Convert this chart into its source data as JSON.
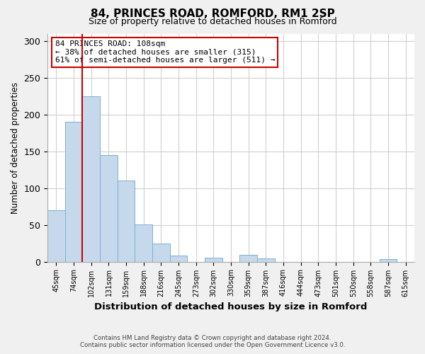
{
  "title": "84, PRINCES ROAD, ROMFORD, RM1 2SP",
  "subtitle": "Size of property relative to detached houses in Romford",
  "xlabel": "Distribution of detached houses by size in Romford",
  "ylabel": "Number of detached properties",
  "bin_labels": [
    "45sqm",
    "74sqm",
    "102sqm",
    "131sqm",
    "159sqm",
    "188sqm",
    "216sqm",
    "245sqm",
    "273sqm",
    "302sqm",
    "330sqm",
    "359sqm",
    "387sqm",
    "416sqm",
    "444sqm",
    "473sqm",
    "501sqm",
    "530sqm",
    "558sqm",
    "587sqm",
    "615sqm"
  ],
  "bin_values": [
    70,
    190,
    225,
    145,
    110,
    51,
    25,
    8,
    0,
    5,
    0,
    9,
    4,
    0,
    0,
    0,
    0,
    0,
    0,
    3,
    0
  ],
  "bar_color": "#c6d9ec",
  "bar_edge_color": "#7bafd4",
  "ylim": [
    0,
    310
  ],
  "yticks": [
    0,
    50,
    100,
    150,
    200,
    250,
    300
  ],
  "vline_x_index": 2,
  "vline_color": "#cc0000",
  "annotation_title": "84 PRINCES ROAD: 108sqm",
  "annotation_line1": "← 38% of detached houses are smaller (315)",
  "annotation_line2": "61% of semi-detached houses are larger (511) →",
  "annotation_box_color": "#ffffff",
  "annotation_box_edge": "#cc0000",
  "footer_line1": "Contains HM Land Registry data © Crown copyright and database right 2024.",
  "footer_line2": "Contains public sector information licensed under the Open Government Licence v3.0.",
  "background_color": "#f0f0f0",
  "plot_bg_color": "#ffffff",
  "grid_color": "#d0d0d0"
}
